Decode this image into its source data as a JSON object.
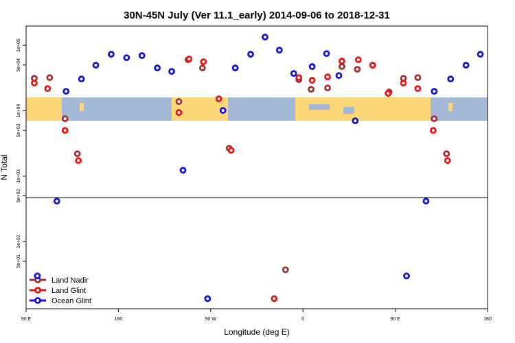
{
  "chart_data": {
    "type": "scatter",
    "title": "30N-45N July (Ver 11.1_early)   2014-09-06 to 2018-12-31",
    "x_label": "Longitude (deg E)",
    "y_label": "N Total",
    "log_y": true,
    "legend": "bottom-left",
    "xlim": [
      90,
      540
    ],
    "xticks": [
      {
        "value": 90,
        "label": "90 E"
      },
      180,
      {
        "value": 270,
        "label": "90 W"
      },
      0,
      {
        "value": 450,
        "label": "90 E"
      },
      {
        "value": 540,
        "label": "180"
      }
    ],
    "ylim": [
      9.4,
      197000
    ],
    "yticks": [
      {
        "value": 50,
        "label": "5e+01"
      },
      {
        "value": 100,
        "label": "1e+02"
      },
      {
        "value": 500,
        "label": "5e+02"
      },
      {
        "value": 1000,
        "label": "1e+03"
      },
      {
        "value": 5000,
        "label": "5e+03"
      },
      {
        "value": 10000,
        "label": "1e+04"
      },
      {
        "value": 50000,
        "label": "5e+04"
      },
      {
        "value": 100000,
        "label": "1e+05"
      }
    ],
    "series": [
      {
        "name": "Land Nadir",
        "color": "#a03030",
        "x": [
          98,
          113,
          128,
          140,
          239,
          248,
          262,
          288,
          343,
          356,
          368,
          384,
          398,
          413,
          428,
          444,
          458,
          472,
          488,
          500
        ],
        "values": [
          31300,
          32100,
          7530,
          2200,
          13800,
          60300,
          45100,
          2670,
          37,
          29900,
          21300,
          22300,
          47300,
          43000,
          49700,
          19300,
          31300,
          32100,
          7530,
          2200
        ]
      },
      {
        "name": "Land Glint",
        "color": "#ee1111",
        "x": [
          98,
          111,
          128,
          141,
          239,
          249,
          263,
          278,
          290,
          332,
          356,
          369,
          384,
          398,
          414,
          428,
          443,
          458,
          472,
          487,
          501
        ],
        "values": [
          26500,
          21800,
          5000,
          1730,
          9380,
          61700,
          56000,
          15200,
          2480,
          13.4,
          32100,
          29200,
          32900,
          57400,
          60300,
          49700,
          18400,
          26500,
          21800,
          5000,
          1730
        ]
      },
      {
        "name": "Ocean Glint",
        "color": "#1111dd",
        "x": [
          101,
          120,
          129,
          144,
          158,
          173,
          188,
          203,
          218,
          232,
          243,
          267,
          282,
          294,
          309,
          323,
          337,
          351,
          369,
          383,
          395,
          411,
          461,
          480,
          488,
          504,
          519,
          533
        ],
        "values": [
          29.8,
          415,
          19800,
          30600,
          49700,
          73100,
          64700,
          69700,
          45100,
          39900,
          1230,
          13.4,
          10100,
          45100,
          73100,
          133600,
          84500,
          37100,
          47300,
          74800,
          34500,
          7010,
          29.8,
          415,
          19800,
          30600,
          49700,
          73100
        ]
      }
    ]
  }
}
